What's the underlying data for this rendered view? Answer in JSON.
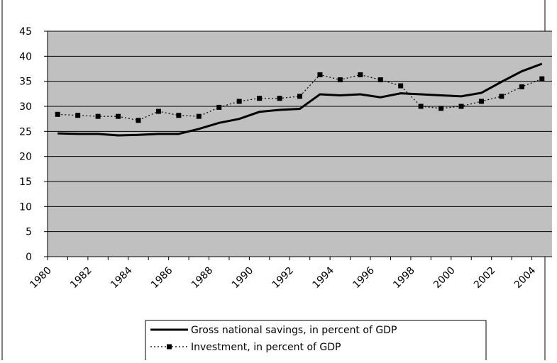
{
  "chart_data": {
    "type": "line",
    "categories": [
      "1980",
      null,
      "1982",
      null,
      "1984",
      null,
      "1986",
      null,
      "1988",
      null,
      "1990",
      null,
      "1992",
      null,
      "1994",
      null,
      "1996",
      null,
      "1998",
      null,
      "2000",
      null,
      "2002",
      null,
      "2004"
    ],
    "series": [
      {
        "name": "Gross national savings, in percent of GDP",
        "color": "#000000",
        "dash": "solid",
        "marker": "none",
        "values": [
          24.6,
          24.5,
          24.5,
          24.2,
          24.3,
          24.5,
          24.5,
          25.5,
          26.7,
          27.5,
          28.9,
          29.3,
          29.5,
          32.4,
          32.2,
          32.4,
          31.8,
          32.6,
          32.4,
          32.2,
          32.0,
          32.7,
          34.9,
          37.0,
          38.5
        ]
      },
      {
        "name": "Investment, in percent of GDP",
        "color": "#000000",
        "dash": "dotted",
        "marker": "square",
        "values": [
          28.4,
          28.2,
          28.0,
          28.0,
          27.2,
          29.0,
          28.2,
          28.0,
          29.8,
          31.0,
          31.6,
          31.6,
          32.0,
          36.3,
          35.3,
          36.3,
          35.3,
          34.1,
          30.0,
          29.6,
          30.0,
          31.0,
          32.0,
          33.9,
          35.5
        ]
      }
    ],
    "ylim": [
      0,
      45
    ],
    "yticks": [
      0,
      5,
      10,
      15,
      20,
      25,
      30,
      35,
      40,
      45
    ],
    "grid": true,
    "plot_background": "#c0c0c0",
    "legend": "bottom"
  }
}
